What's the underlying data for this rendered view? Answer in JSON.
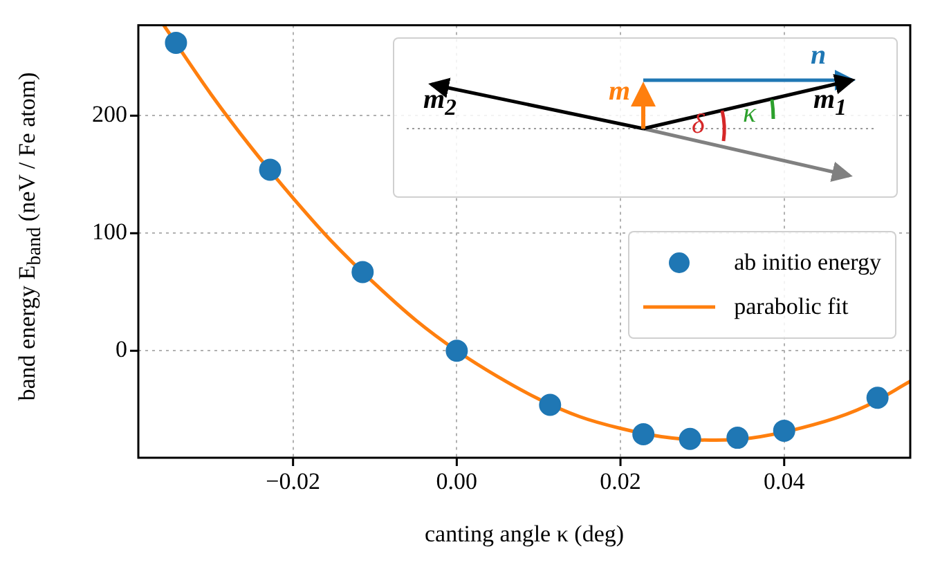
{
  "chart_data": {
    "type": "scatter",
    "xlabel": "canting angle κ (deg)",
    "ylabel": "band energy E$_{band}$ (neV / Fe atom)",
    "xlim": [
      -0.0389,
      0.0554
    ],
    "xticks": [
      {
        "value": -0.02,
        "label": "−0.02"
      },
      {
        "value": 0,
        "label": "0.00"
      },
      {
        "value": 0.02,
        "label": "0.02"
      },
      {
        "value": 0.04,
        "label": "0.04"
      }
    ],
    "ylim": [
      -91,
      277
    ],
    "yticks": [
      0,
      100,
      200
    ],
    "grid": true,
    "legend": "right",
    "series": [
      {
        "name": "ab initio energy",
        "marker": "circle",
        "color": "#1f77b4",
        "x": [
          -0.0343,
          -0.0228,
          -0.0115,
          0,
          0.0114,
          0.0228,
          0.0285,
          0.0343,
          0.04,
          0.0514
        ],
        "values": [
          262,
          154,
          67,
          0,
          -46,
          -71,
          -75,
          -74,
          -68,
          -40
        ]
      },
      {
        "name": "parabolic fit",
        "type": "line",
        "marker": "none",
        "color": "#ff7f0e",
        "x": [
          -0.0358,
          -0.03,
          -0.025,
          -0.02,
          -0.015,
          -0.01,
          -0.005,
          0,
          0.005,
          0.01,
          0.015,
          0.02,
          0.025,
          0.031,
          0.035,
          0.045,
          0.05,
          0.0554
        ],
        "values": [
          277,
          218,
          172,
          130,
          91,
          57,
          26,
          0,
          -22,
          -41,
          -56,
          -66,
          -73,
          -76,
          -75,
          -60,
          -47,
          -26
        ]
      }
    ],
    "annotations": [
      "m$_{2}$",
      "m",
      "n",
      "m$_{1}$",
      "δ",
      "κ"
    ]
  }
}
